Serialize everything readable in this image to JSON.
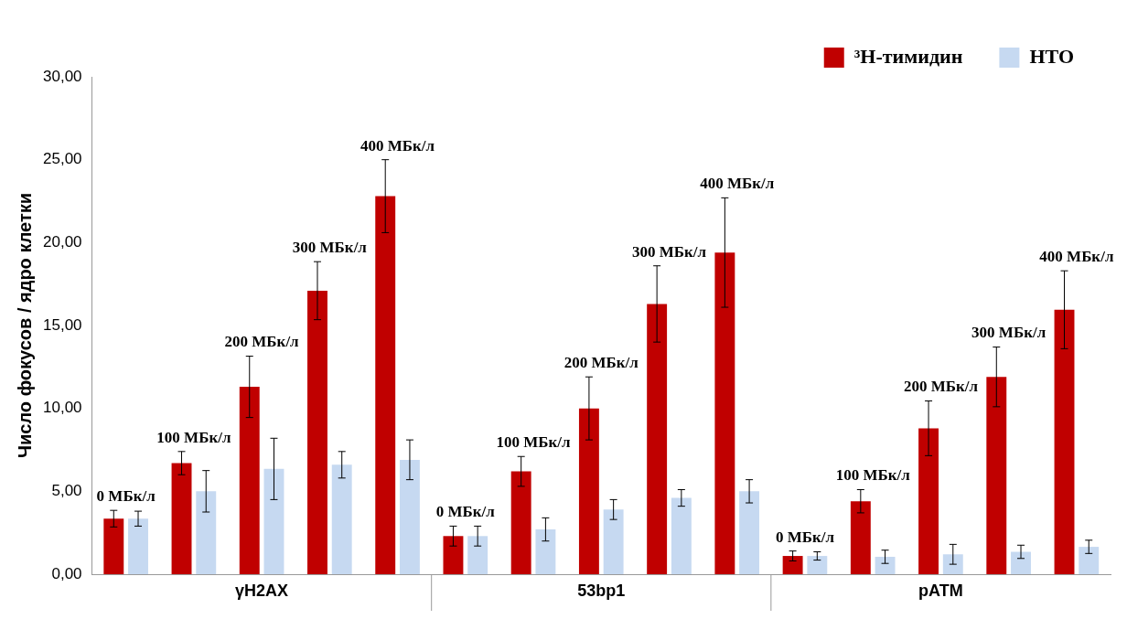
{
  "chart_data": {
    "type": "bar",
    "ylabel": "Число фокусов / ядро клетки",
    "categories": [
      "0 МБк/л",
      "100 МБк/л",
      "200 МБк/л",
      "300 МБк/л",
      "400 МБк/л",
      "0 МБк/л",
      "100 МБк/л",
      "200 МБк/л",
      "300 МБк/л",
      "400 МБк/л",
      "0 МБк/л",
      "100 МБк/л",
      "200 МБк/л",
      "300 МБк/л",
      "400 МБк/л"
    ],
    "series": [
      {
        "name": "³H-тимидин",
        "color": "#c00000",
        "values": [
          3.35,
          6.7,
          11.3,
          17.1,
          22.8,
          2.3,
          6.2,
          10.0,
          16.3,
          19.4,
          1.1,
          4.4,
          8.8,
          11.9,
          15.95
        ],
        "errors": [
          0.5,
          0.7,
          1.85,
          1.75,
          2.2,
          0.6,
          0.9,
          1.9,
          2.3,
          3.3,
          0.3,
          0.7,
          1.65,
          1.8,
          2.35
        ]
      },
      {
        "name": "НТО",
        "color": "#c6d9f1",
        "values": [
          3.35,
          5.0,
          6.35,
          6.6,
          6.9,
          2.3,
          2.7,
          3.9,
          4.6,
          5.0,
          1.1,
          1.05,
          1.2,
          1.35,
          1.65
        ],
        "errors": [
          0.45,
          1.25,
          1.85,
          0.8,
          1.2,
          0.6,
          0.7,
          0.6,
          0.5,
          0.7,
          0.25,
          0.4,
          0.6,
          0.4,
          0.4
        ]
      }
    ],
    "annotations": [
      "γH2AX",
      "53bp1",
      "pATM"
    ],
    "ylim": [
      0,
      30
    ],
    "yticks": [
      {
        "value": 0,
        "label": "0,00"
      },
      {
        "value": 5,
        "label": "5,00"
      },
      {
        "value": 10,
        "label": "10,00"
      },
      {
        "value": 15,
        "label": "15,00"
      },
      {
        "value": 20,
        "label": "20,00"
      },
      {
        "value": 25,
        "label": "25,00"
      },
      {
        "value": 30,
        "label": "30,00"
      }
    ],
    "grid": false,
    "legend": "top right"
  }
}
